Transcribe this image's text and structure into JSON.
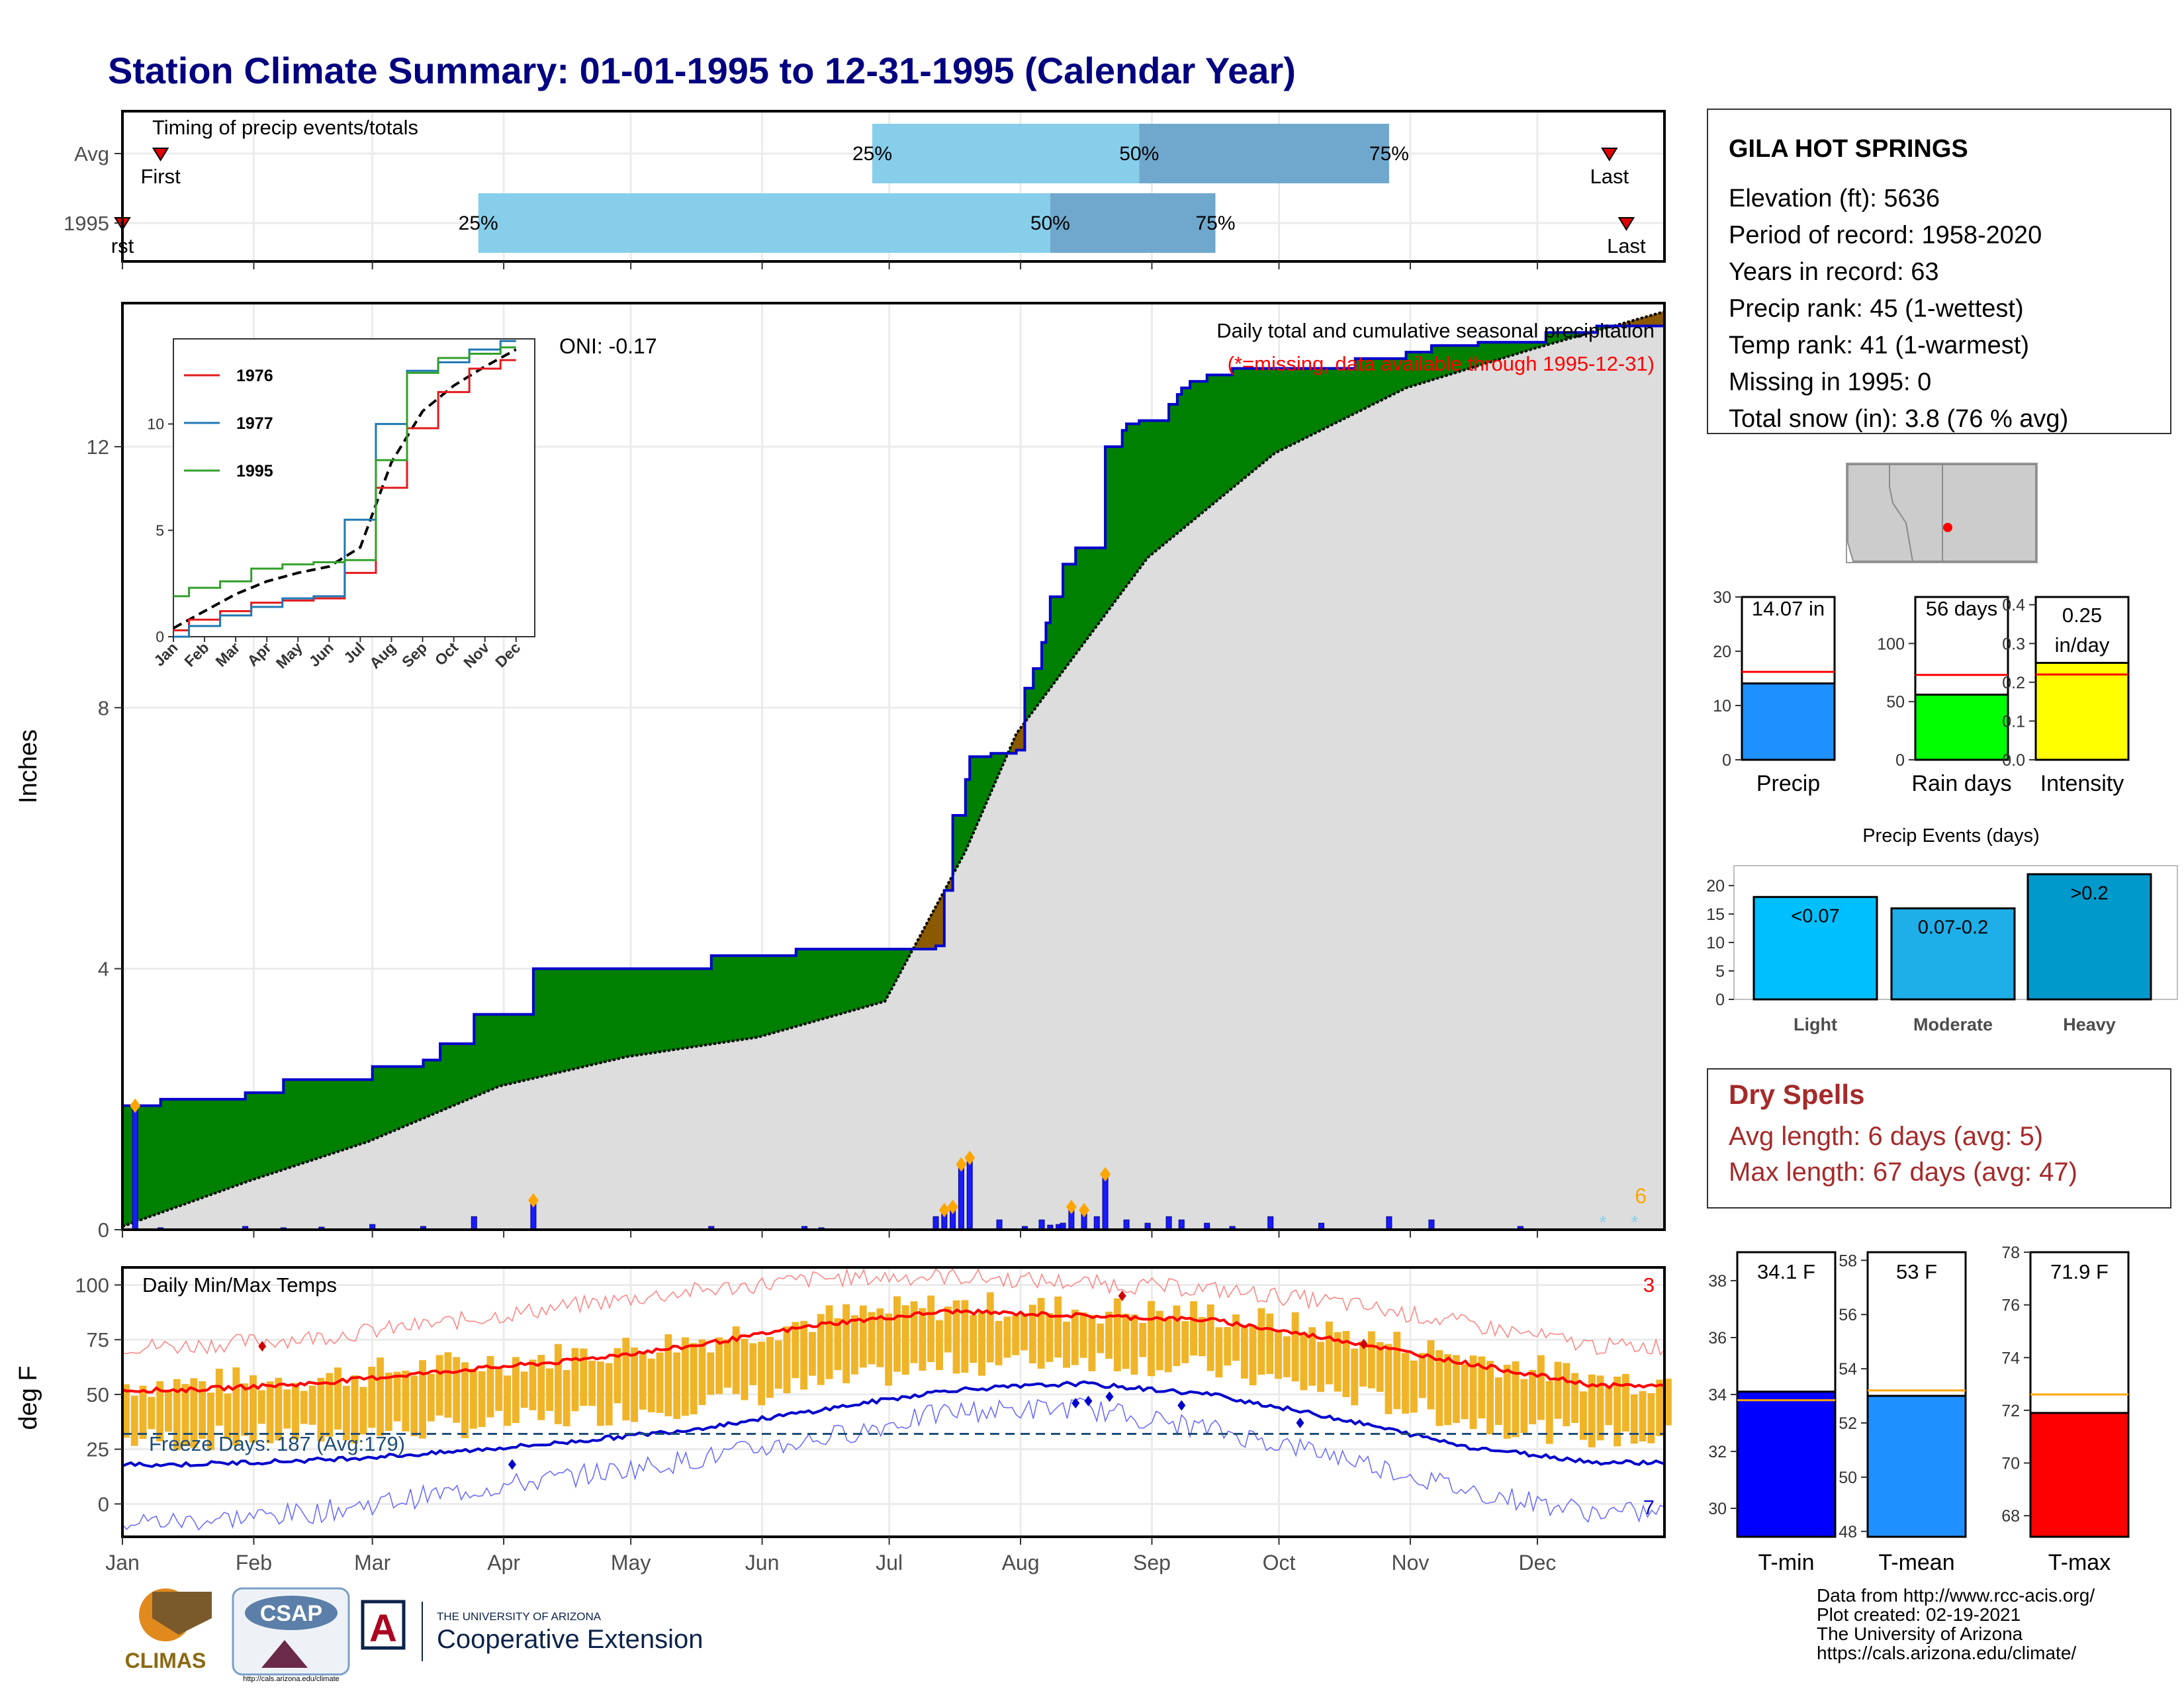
{
  "title": "Station Climate Summary: 01-01-1995 to 12-31-1995 (Calendar Year)",
  "colors": {
    "title": "#000080",
    "avg_cumulative_fill": "#dddddd",
    "above_avg_fill": "#008000",
    "below_avg_fill": "#8b5a00",
    "daily_precip": "#1a1aff",
    "precip_line": "#0000cc",
    "iqr_light": "#87ceeb",
    "iqr_dark": "#6fa8cc",
    "temp_range": "#f0b429",
    "tmax_line": "#ff0000",
    "tmin_line": "#0000cc",
    "extreme_marker": "#ffa500",
    "dry_spell_text": "#a52a2a"
  },
  "timing_panel": {
    "label": "Timing of precip events/totals",
    "rows": [
      {
        "name": "Avg",
        "first_label": "First",
        "last_label": "Last",
        "first_doy": 10,
        "p25_doy": 178,
        "p50_doy": 241,
        "p75_doy": 300,
        "last_doy": 352,
        "p25_label": "25%",
        "p50_label": "50%",
        "p75_label": "75%"
      },
      {
        "name": "1995",
        "first_label": "rst",
        "last_label": "Last",
        "first_doy": 1,
        "p25_doy": 85,
        "p50_doy": 220,
        "p75_doy": 259,
        "last_doy": 356,
        "p25_label": "25%",
        "p50_label": "50%",
        "p75_label": "75%"
      }
    ]
  },
  "precip_panel": {
    "header": "Daily total and cumulative seasonal precipitation",
    "missing_note": "(*=missing, data available through 1995-12-31)",
    "oni_label": "ONI: -0.17",
    "ylabel": "Inches",
    "y_ticks": [
      "0",
      "4",
      "8",
      "12"
    ],
    "corner_count": "6"
  },
  "inset": {
    "y_ticks": [
      "0",
      "5",
      "10"
    ],
    "x_ticks": [
      "Jan",
      "Feb",
      "Mar",
      "Apr",
      "May",
      "Jun",
      "Jul",
      "Aug",
      "Sep",
      "Oct",
      "Nov",
      "Dec"
    ],
    "legend": [
      {
        "name": "1976",
        "color": "#e31a1c"
      },
      {
        "name": "1977",
        "color": "#1f78b4"
      },
      {
        "name": "1995",
        "color": "#33a02c"
      }
    ]
  },
  "temp_panel": {
    "label": "Daily Min/Max Temps",
    "ylabel": "deg F",
    "y_ticks": [
      "0",
      "25",
      "50",
      "75",
      "100"
    ],
    "freeze_label": "Freeze Days: 187 (Avg:179)",
    "corner_hot": "3",
    "corner_cold": "7"
  },
  "months": [
    "Jan",
    "Feb",
    "Mar",
    "Apr",
    "May",
    "Jun",
    "Jul",
    "Aug",
    "Sep",
    "Oct",
    "Nov",
    "Dec"
  ],
  "station": {
    "name": "GILA HOT SPRINGS",
    "lines": [
      "Elevation (ft): 5636",
      "Period of record: 1958-2020",
      "Years in record: 63",
      "Precip rank: 45 (1-wettest)",
      "Temp rank: 41 (1-warmest)",
      "Missing in 1995: 0",
      "Total snow (in): 3.8 (76 % avg)"
    ]
  },
  "summary_bars": [
    {
      "label": "Precip",
      "value_text": "14.07 in",
      "value": 14.07,
      "avg": 16.2,
      "ymax": 30,
      "ticks": [
        "0",
        "10",
        "20",
        "30"
      ],
      "color": "#1e90ff"
    },
    {
      "label": "Rain days",
      "value_text": "56 days",
      "value": 56,
      "avg": 73,
      "ymax": 140,
      "ticks": [
        "0",
        "50",
        "100"
      ],
      "color": "#00ff00"
    },
    {
      "label": "Intensity",
      "value_text": "0.25 in/day",
      "value": 0.25,
      "avg": 0.22,
      "ymax": 0.42,
      "ticks": [
        "0.0",
        "0.1",
        "0.2",
        "0.3",
        "0.4"
      ],
      "color": "#ffff00"
    }
  ],
  "precip_events": {
    "title": "Precip Events (days)",
    "ticks": [
      "0",
      "5",
      "10",
      "15",
      "20"
    ],
    "bars": [
      {
        "label": "Light",
        "bar_text": "<0.07",
        "value": 18,
        "color": "#00bfff"
      },
      {
        "label": "Moderate",
        "bar_text": "0.07-0.2",
        "value": 16,
        "color": "#1eaee8"
      },
      {
        "label": "Heavy",
        "bar_text": ">0.2",
        "value": 22,
        "color": "#0099cc"
      }
    ]
  },
  "dry_spells": {
    "title": "Dry Spells",
    "avg_line": "Avg length: 6 days (avg: 5)",
    "max_line": "Max length: 67 days (avg: 47)"
  },
  "temp_bars": [
    {
      "label": "T-min",
      "value_text": "34.1 F",
      "value": 34.1,
      "avg": 33.8,
      "ymin": 29,
      "ymax": 39,
      "ticks": [
        "30",
        "32",
        "34",
        "36",
        "38"
      ],
      "color": "#0000ff"
    },
    {
      "label": "T-mean",
      "value_text": "53 F",
      "value": 53.0,
      "avg": 53.2,
      "ymin": 47.8,
      "ymax": 58.3,
      "ticks": [
        "48",
        "50",
        "52",
        "54",
        "56",
        "58"
      ],
      "color": "#1e90ff"
    },
    {
      "label": "T-max",
      "value_text": "71.9 F",
      "value": 71.9,
      "avg": 72.6,
      "ymin": 67.2,
      "ymax": 78,
      "ticks": [
        "68",
        "70",
        "72",
        "74",
        "76",
        "78"
      ],
      "color": "#ff0000"
    }
  ],
  "credits": [
    "Data from http://www.rcc-acis.org/",
    "Plot created: 02-19-2021",
    "The University of Arizona",
    "https://cals.arizona.edu/climate/"
  ],
  "logos": {
    "climas": "CLIMAS",
    "csap": "CSAP",
    "csap_url": "http://cals.arizona.edu/climate",
    "ua_line1": "THE UNIVERSITY OF ARIZONA",
    "ua_line2": "Cooperative Extension",
    "ua_mark": "A"
  },
  "chart_data": [
    {
      "type": "area",
      "title": "Daily total and cumulative seasonal precipitation",
      "ylabel": "Inches",
      "ylim": [
        0,
        14.2
      ],
      "series": [
        {
          "name": "",
          "x_doy": [
            1,
            4,
            10,
            30,
            39,
            60,
            72,
            76,
            84,
            98,
            140,
            160,
            193,
            195,
            197,
            200,
            201,
            206,
            212,
            214,
            216,
            218,
            219,
            220,
            223,
            226,
            233,
            237,
            238,
            241,
            248,
            250,
            251,
            253,
            257,
            263,
            272,
            292,
            304,
            310,
            321,
            337,
            349,
            365
          ],
          "cumulative": [
            1.9,
            1.9,
            2.0,
            2.1,
            2.3,
            2.5,
            2.6,
            2.85,
            3.3,
            4.0,
            4.2,
            4.3,
            4.35,
            5.2,
            6.35,
            6.9,
            7.25,
            7.3,
            7.35,
            8.3,
            8.6,
            9.0,
            9.3,
            9.7,
            10.2,
            10.45,
            12.0,
            12.25,
            12.35,
            12.4,
            12.65,
            12.8,
            12.9,
            13.0,
            13.1,
            13.2,
            13.2,
            13.35,
            13.45,
            13.55,
            13.6,
            13.75,
            13.85,
            14.07
          ]
        }
      ],
      "average_cumulative": {
        "x_doy": [
          1,
          31,
          59,
          90,
          120,
          151,
          181,
          200,
          212,
          243,
          273,
          304,
          334,
          365
        ],
        "values": [
          0.05,
          0.75,
          1.35,
          2.2,
          2.65,
          2.95,
          3.5,
          5.8,
          7.6,
          10.3,
          11.9,
          12.9,
          13.5,
          14.07
        ]
      },
      "daily": {
        "x_doy": [
          4,
          10,
          30,
          39,
          48,
          60,
          72,
          84,
          98,
          140,
          162,
          166,
          193,
          195,
          197,
          199,
          201,
          208,
          214,
          218,
          220,
          222,
          223,
          225,
          228,
          231,
          233,
          238,
          243,
          248,
          251,
          257,
          263,
          272,
          284,
          300,
          310,
          331
        ],
        "values": [
          1.9,
          0.03,
          0.05,
          0.03,
          0.04,
          0.08,
          0.05,
          0.2,
          0.45,
          0.05,
          0.05,
          0.03,
          0.2,
          0.3,
          0.35,
          1.0,
          1.1,
          0.15,
          0.05,
          0.15,
          0.07,
          0.08,
          0.1,
          0.35,
          0.3,
          0.2,
          0.85,
          0.15,
          0.1,
          0.2,
          0.15,
          0.1,
          0.05,
          0.2,
          0.1,
          0.2,
          0.15,
          0.05
        ]
      }
    },
    {
      "type": "line",
      "title": "",
      "x": [
        "Jan",
        "Feb",
        "Mar",
        "Apr",
        "May",
        "Jun",
        "Jul",
        "Aug",
        "Sep",
        "Oct",
        "Nov",
        "Dec"
      ],
      "ylim": [
        0,
        14
      ],
      "series": [
        {
          "name": "1976",
          "values": [
            0.3,
            0.8,
            1.2,
            1.6,
            1.7,
            1.8,
            3.0,
            7.0,
            9.8,
            11.5,
            12.6,
            13.0
          ]
        },
        {
          "name": "1977",
          "values": [
            0.0,
            0.5,
            1.0,
            1.4,
            1.8,
            1.9,
            5.5,
            10.0,
            12.5,
            12.9,
            13.5,
            13.9
          ]
        },
        {
          "name": "1995",
          "values": [
            1.9,
            2.3,
            2.6,
            3.2,
            3.4,
            3.5,
            3.6,
            8.3,
            12.4,
            13.1,
            13.3,
            13.6
          ]
        }
      ]
    },
    {
      "type": "line",
      "title": "Daily Min/Max Temps",
      "ylabel": "deg F",
      "ylim": [
        -15,
        108
      ],
      "x": [
        "Jan",
        "Feb",
        "Mar",
        "Apr",
        "May",
        "Jun",
        "Jul",
        "Aug",
        "Sep",
        "Oct",
        "Nov",
        "Dec"
      ],
      "series": [
        {
          "name": "",
          "values": [
            52,
            55,
            60,
            65,
            72,
            82,
            88,
            86,
            84,
            75,
            64,
            54
          ]
        },
        {
          "name": "",
          "values": [
            18,
            20,
            23,
            28,
            34,
            43,
            52,
            55,
            50,
            39,
            26,
            19
          ]
        },
        {
          "name": "",
          "values": [
            72,
            76,
            82,
            90,
            97,
            103,
            104,
            101,
            98,
            92,
            82,
            72
          ]
        },
        {
          "name": "",
          "values": [
            -8,
            -4,
            4,
            12,
            20,
            30,
            42,
            44,
            34,
            22,
            6,
            -4
          ]
        }
      ],
      "freeze_line": 32
    },
    {
      "type": "bar",
      "categories": [
        "Precip",
        "Rain days",
        "Intensity"
      ],
      "values": [
        14.07,
        56,
        0.25
      ]
    },
    {
      "type": "bar",
      "title": "Precip Events (days)",
      "categories": [
        "Light",
        "Moderate",
        "Heavy"
      ],
      "values": [
        18,
        16,
        22
      ]
    },
    {
      "type": "bar",
      "categories": [
        "T-min",
        "T-mean",
        "T-max"
      ],
      "values": [
        34.1,
        53.0,
        71.9
      ]
    }
  ]
}
